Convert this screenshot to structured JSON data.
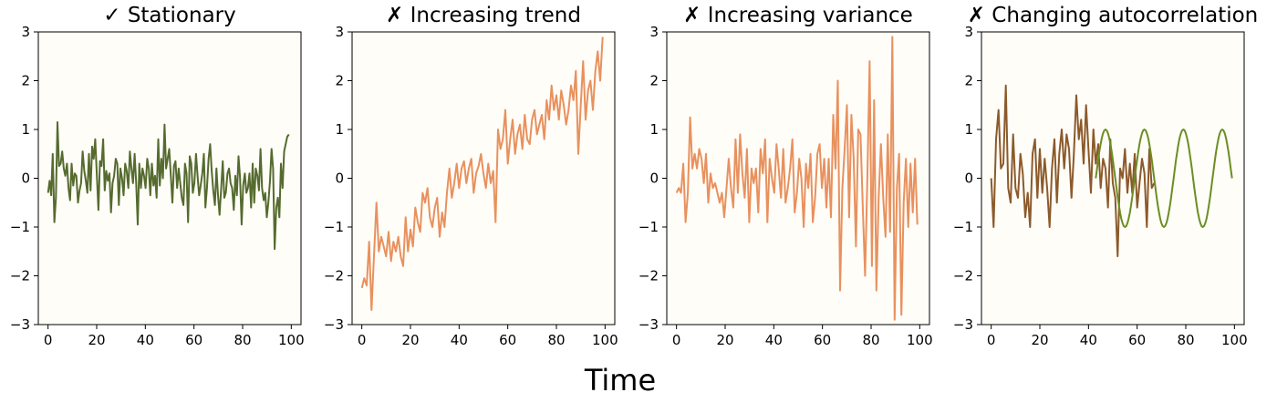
{
  "figure": {
    "xlabel": "Time"
  },
  "chart_data": [
    {
      "type": "line",
      "title": "✓ Stationary",
      "xlim": [
        -4,
        104
      ],
      "ylim": [
        -3,
        3
      ],
      "xticks": [
        "0",
        "20",
        "40",
        "60",
        "80",
        "100"
      ],
      "yticks": [
        "−3",
        "−2",
        "−1",
        "0",
        "1",
        "2",
        "3"
      ],
      "series": [
        {
          "color": "#556b2f",
          "x_start": 0,
          "x_step": 1,
          "values": [
            -0.3,
            -0.05,
            -0.35,
            0.5,
            -0.9,
            -0.4,
            1.15,
            0.25,
            0.3,
            0.55,
            0.2,
            0.05,
            0.3,
            -0.2,
            -0.45,
            0.3,
            -0.15,
            0.1,
            0.05,
            -0.5,
            -0.25,
            -0.1,
            0.55,
            0.15,
            -0.05,
            -0.3,
            0.5,
            -0.25,
            0.65,
            0.4,
            0.8,
            0.05,
            -0.65,
            0.35,
            0.25,
            0.8,
            -0.25,
            0.15,
            -0.05,
            0.1,
            -0.7,
            -0.1,
            0.05,
            0.4,
            0.3,
            -0.55,
            0.2,
            0.0,
            -0.35,
            0.3,
            0.15,
            -0.2,
            0.55,
            0.2,
            -0.1,
            0.5,
            -0.1,
            -0.95,
            0.3,
            -0.2,
            0.2,
            0.05,
            -0.2,
            0.4,
            0.2,
            -0.35,
            0.3,
            -0.15,
            0.05,
            -0.4,
            0.8,
            -0.15,
            0.4,
            0.0,
            1.1,
            0.2,
            0.4,
            0.6,
            0.05,
            -0.5,
            0.25,
            0.35,
            -0.2,
            0.2,
            -0.1,
            -0.4,
            -0.55,
            0.3,
            0.1,
            -0.9,
            0.45,
            0.3,
            -0.3,
            -0.1,
            0.5,
            0.05,
            -0.35,
            -0.15,
            0.1,
            0.5,
            -0.6,
            -0.2,
            0.4,
            0.7,
            0.15,
            -0.25,
            -0.55,
            0.2,
            -0.35,
            -0.75,
            -0.2,
            0.35,
            -0.4,
            -0.3,
            0.1,
            0.2,
            -0.1,
            -0.2,
            -0.65,
            0.05,
            -0.35,
            0.45,
            0.0,
            -0.95,
            -0.15,
            0.1,
            -0.3,
            -0.2,
            0.1,
            -0.6,
            0.3,
            -0.5,
            0.2,
            0.05,
            -0.25,
            0.6,
            -0.2,
            -0.45,
            -0.3,
            -0.8,
            -0.5,
            -0.05,
            0.6,
            0.2,
            -1.45,
            -0.6,
            -0.4,
            -0.8,
            0.3,
            -0.2,
            0.55,
            0.7,
            0.85,
            0.9
          ]
        }
      ]
    },
    {
      "type": "line",
      "title": "✗ Increasing trend",
      "xlim": [
        -4,
        104
      ],
      "ylim": [
        -3,
        3
      ],
      "xticks": [
        "0",
        "20",
        "40",
        "60",
        "80",
        "100"
      ],
      "yticks": [
        "−3",
        "−2",
        "−1",
        "0",
        "1",
        "2",
        "3"
      ],
      "series": [
        {
          "color": "#e8915e",
          "x_start": 0,
          "x_step": 1,
          "values": [
            -2.25,
            -2.05,
            -2.2,
            -1.3,
            -2.7,
            -1.6,
            -0.5,
            -1.5,
            -1.2,
            -1.4,
            -1.6,
            -1.1,
            -1.7,
            -1.3,
            -1.5,
            -1.2,
            -1.6,
            -1.8,
            -0.8,
            -1.5,
            -1.05,
            -1.4,
            -0.6,
            -0.9,
            -1.1,
            -0.3,
            -0.5,
            -0.2,
            -0.8,
            -1.0,
            -0.6,
            -0.4,
            -1.2,
            -0.7,
            -1.0,
            -0.3,
            0.2,
            -0.4,
            -0.1,
            0.3,
            -0.2,
            0.2,
            0.35,
            -0.1,
            0.2,
            0.4,
            -0.3,
            0.1,
            0.25,
            0.5,
            0.1,
            -0.2,
            0.3,
            -0.1,
            0.15,
            -0.9,
            1.0,
            0.6,
            0.8,
            1.4,
            0.3,
            0.8,
            1.2,
            0.5,
            0.9,
            1.1,
            0.6,
            1.3,
            0.8,
            0.7,
            1.2,
            1.4,
            0.9,
            1.1,
            1.3,
            0.8,
            1.6,
            1.2,
            1.9,
            1.4,
            1.7,
            1.2,
            1.8,
            1.5,
            1.1,
            1.4,
            1.9,
            1.6,
            2.2,
            0.5,
            1.5,
            2.4,
            1.2,
            1.8,
            2.0,
            1.4,
            2.2,
            2.6,
            2.0,
            2.9
          ]
        }
      ]
    },
    {
      "type": "line",
      "title": "✗ Increasing variance",
      "xlim": [
        -4,
        104
      ],
      "ylim": [
        -3,
        3
      ],
      "xticks": [
        "0",
        "20",
        "40",
        "60",
        "80",
        "100"
      ],
      "yticks": [
        "−3",
        "−2",
        "−1",
        "0",
        "1",
        "2",
        "3"
      ],
      "series": [
        {
          "color": "#e8915e",
          "x_start": 0,
          "x_step": 1,
          "values": [
            -0.3,
            -0.2,
            -0.3,
            0.3,
            -0.9,
            -0.3,
            1.25,
            0.2,
            0.5,
            0.2,
            0.6,
            0.4,
            -0.1,
            0.5,
            -0.5,
            0.1,
            -0.2,
            -0.1,
            -0.3,
            -0.5,
            -0.3,
            -0.8,
            -0.2,
            0.4,
            -0.2,
            -0.6,
            0.8,
            -0.3,
            0.9,
            0.1,
            -0.4,
            0.6,
            -0.9,
            0.2,
            -0.1,
            0.2,
            -0.7,
            0.6,
            0.1,
            0.8,
            -0.9,
            0.4,
            0.0,
            -0.3,
            0.7,
            0.2,
            -0.4,
            0.6,
            -0.5,
            -0.2,
            0.2,
            0.8,
            -0.7,
            -0.3,
            0.4,
            0.0,
            -1.0,
            0.3,
            -0.2,
            0.5,
            -0.9,
            -0.4,
            0.5,
            0.7,
            -0.2,
            0.4,
            -0.6,
            0.4,
            -0.8,
            1.3,
            0.2,
            2.0,
            -2.3,
            -0.2,
            0.6,
            1.5,
            -0.8,
            1.3,
            0.4,
            -1.4,
            1.0,
            0.9,
            -0.6,
            -2.0,
            0.0,
            2.4,
            -1.8,
            1.6,
            -2.3,
            -0.4,
            0.7,
            -0.4,
            -1.2,
            0.9,
            -1.1,
            2.9,
            -2.9,
            -0.2,
            0.5,
            -2.8,
            -0.5,
            0.4,
            -1.0,
            0.3,
            -0.7,
            0.4,
            -0.95
          ]
        }
      ]
    },
    {
      "type": "line",
      "title": "✗ Changing autocorrelation",
      "xlim": [
        -4,
        104
      ],
      "ylim": [
        -3,
        3
      ],
      "xticks": [
        "0",
        "20",
        "40",
        "60",
        "80",
        "100"
      ],
      "yticks": [
        "−3",
        "−2",
        "−1",
        "0",
        "1",
        "2",
        "3"
      ],
      "series": [
        {
          "color": "#8b5a2b",
          "x_start": 0,
          "x_step": 1,
          "values": [
            0.0,
            -1.0,
            0.8,
            1.4,
            0.2,
            0.3,
            1.9,
            -0.2,
            -0.5,
            0.9,
            -0.2,
            -0.4,
            0.5,
            0.1,
            -0.8,
            -0.3,
            -1.0,
            0.5,
            0.8,
            -0.4,
            0.6,
            -0.3,
            0.4,
            -0.2,
            -1.0,
            0.2,
            0.8,
            -0.5,
            0.5,
            1.0,
            0.2,
            0.9,
            0.6,
            -0.4,
            0.5,
            1.7,
            0.8,
            1.2,
            0.3,
            1.5,
            0.6,
            -0.3,
            1.0,
            0.3,
            0.7,
            -0.2,
            0.4,
            0.2,
            -0.6,
            0.8,
            -0.1,
            -0.4,
            -1.6,
            0.2,
            0.0,
            0.6,
            -0.3,
            0.3,
            -0.3,
            0.5,
            -0.6,
            -0.1,
            0.4,
            0.1,
            -1.0,
            0.6,
            -0.2,
            -0.1
          ]
        },
        {
          "color": "#6b8e23",
          "x_start": 43,
          "x_step": 1,
          "style": "sine",
          "amplitude": 1.0,
          "period": 16,
          "x_end": 99
        }
      ]
    }
  ]
}
